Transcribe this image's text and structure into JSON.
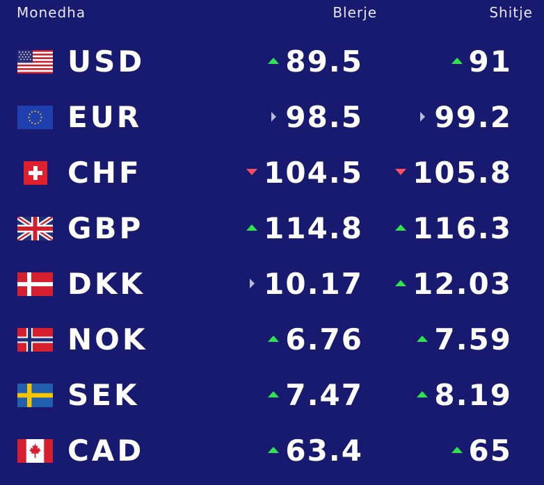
{
  "header": {
    "currency": "Monedha",
    "buy": "Blerje",
    "sell": "Shitje"
  },
  "colors": {
    "background": "#171a6e",
    "up": "#2ee34c",
    "down": "#ff4d5e",
    "same": "#b8bbd8"
  },
  "rates": [
    {
      "code": "USD",
      "flag": "us-flag-icon",
      "buy": "89.5",
      "buy_trend": "up",
      "sell": "91",
      "sell_trend": "up"
    },
    {
      "code": "EUR",
      "flag": "eu-flag-icon",
      "buy": "98.5",
      "buy_trend": "same",
      "sell": "99.2",
      "sell_trend": "same"
    },
    {
      "code": "CHF",
      "flag": "ch-flag-icon",
      "buy": "104.5",
      "buy_trend": "down",
      "sell": "105.8",
      "sell_trend": "down"
    },
    {
      "code": "GBP",
      "flag": "gb-flag-icon",
      "buy": "114.8",
      "buy_trend": "up",
      "sell": "116.3",
      "sell_trend": "up"
    },
    {
      "code": "DKK",
      "flag": "dk-flag-icon",
      "buy": "10.17",
      "buy_trend": "same",
      "sell": "12.03",
      "sell_trend": "up"
    },
    {
      "code": "NOK",
      "flag": "no-flag-icon",
      "buy": "6.76",
      "buy_trend": "up",
      "sell": "7.59",
      "sell_trend": "up"
    },
    {
      "code": "SEK",
      "flag": "se-flag-icon",
      "buy": "7.47",
      "buy_trend": "up",
      "sell": "8.19",
      "sell_trend": "up"
    },
    {
      "code": "CAD",
      "flag": "ca-flag-icon",
      "buy": "63.4",
      "buy_trend": "up",
      "sell": "65",
      "sell_trend": "up"
    }
  ]
}
